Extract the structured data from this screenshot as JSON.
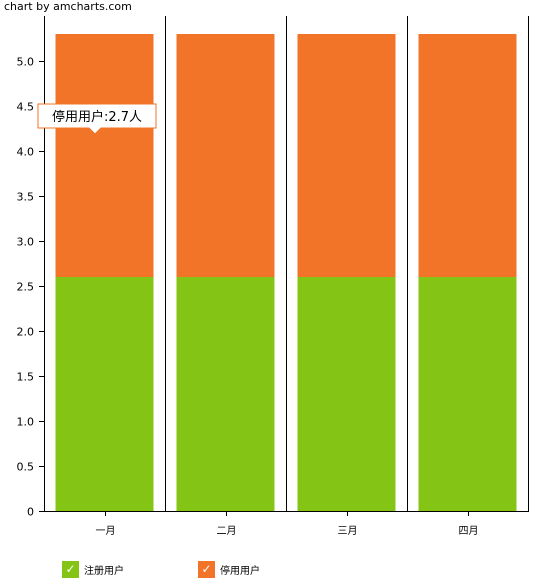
{
  "credit": "chart by amcharts.com",
  "chart_data": {
    "type": "bar",
    "stacked": true,
    "categories": [
      "一月",
      "二月",
      "三月",
      "四月"
    ],
    "series": [
      {
        "name": "注册用户",
        "color": "#84c414",
        "values": [
          2.6,
          2.6,
          2.6,
          2.6
        ]
      },
      {
        "name": "停用用户",
        "color": "#f27428",
        "values": [
          2.7,
          2.7,
          2.7,
          2.7
        ]
      }
    ],
    "ylim": [
      0,
      5.3
    ],
    "yticks": [
      "0",
      "0.5",
      "1.0",
      "1.5",
      "2.0",
      "2.5",
      "3.0",
      "3.5",
      "4.0",
      "4.5",
      "5.0"
    ],
    "grid": "vertical-category-separators",
    "legend": "bottom-left",
    "tooltip": {
      "text": "停用用户:2.7人",
      "series": "停用用户",
      "category": "一月"
    }
  },
  "legend": {
    "check_glyph": "✓",
    "icon": "check-icon"
  }
}
